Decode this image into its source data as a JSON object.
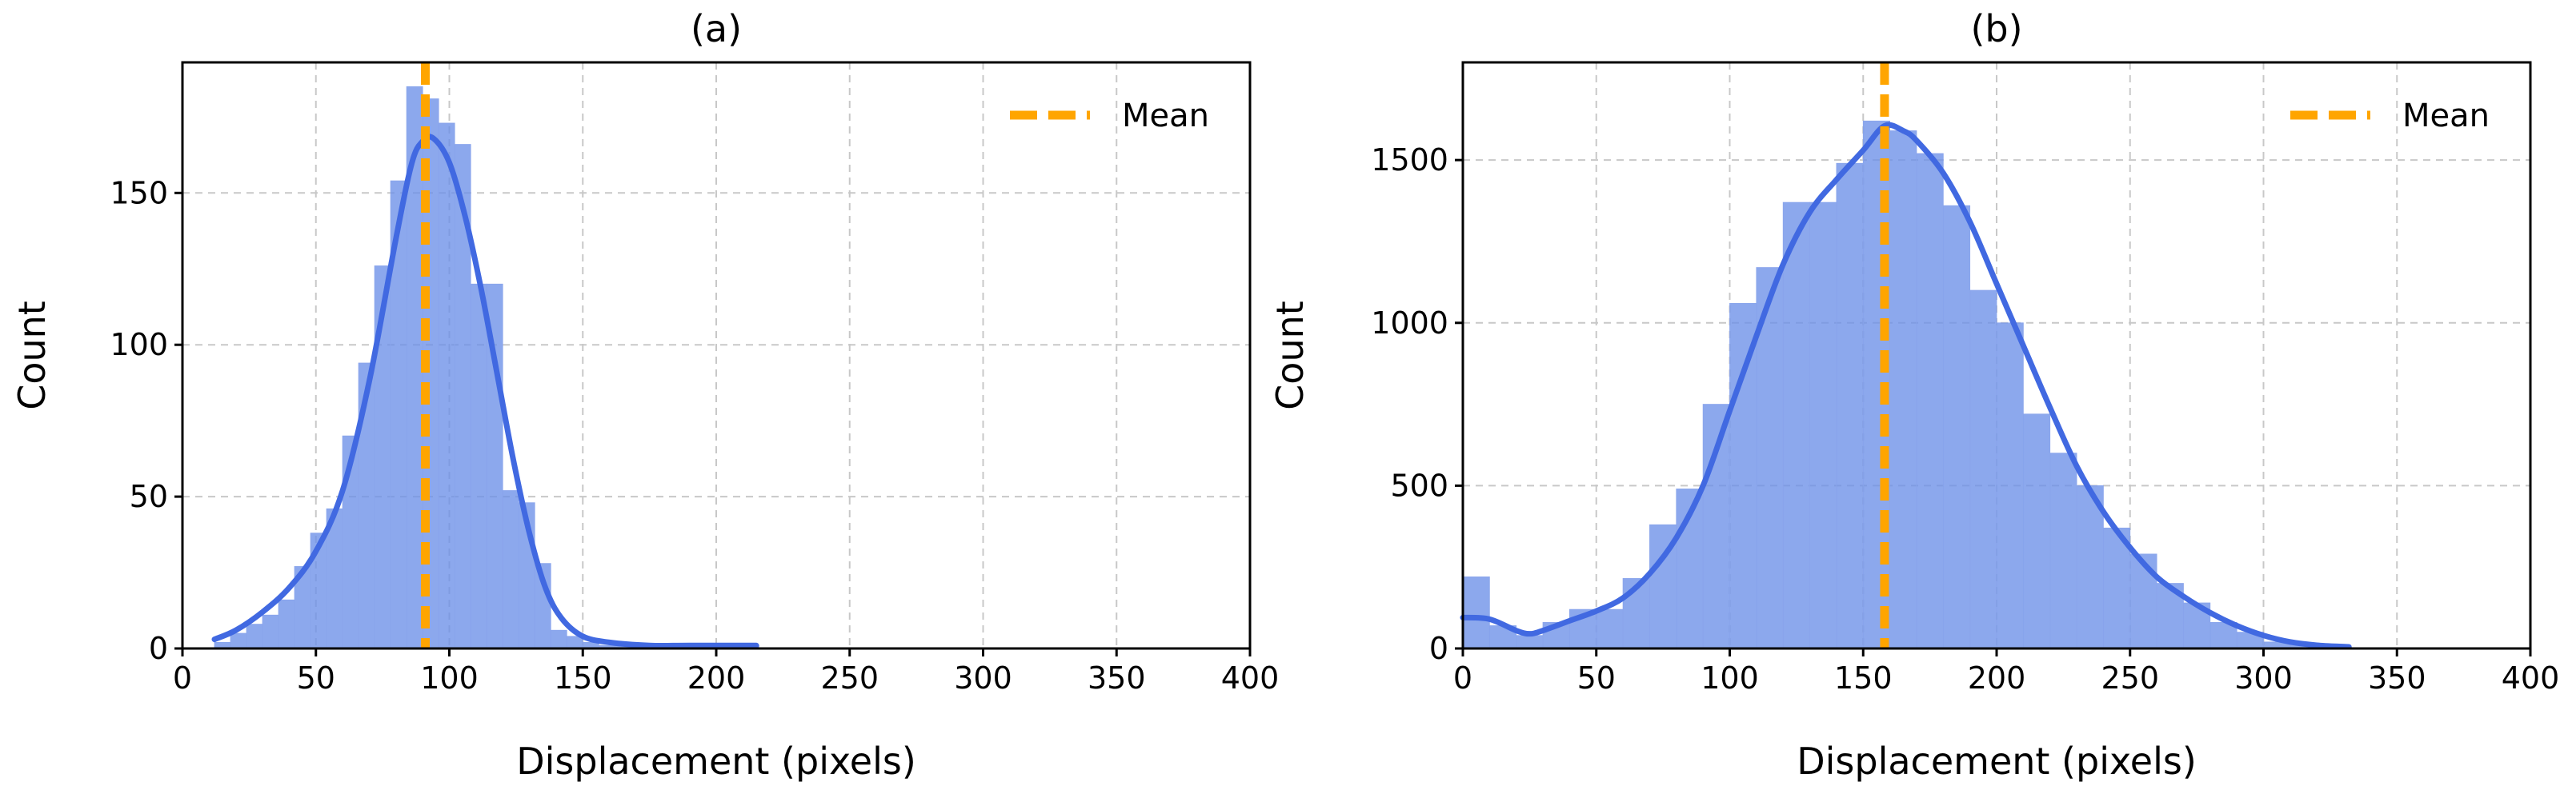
{
  "colors": {
    "bar_fill": "#6b8fe8",
    "bar_opacity": 0.78,
    "kde_line": "#4169e1",
    "mean_line": "#ffa500",
    "grid": "#c8c8c8",
    "axis": "#000000"
  },
  "chart_data": [
    {
      "type": "histogram",
      "title": "(a)",
      "xlabel": "Displacement (pixels)",
      "ylabel": "Count",
      "xlim": [
        0,
        400
      ],
      "ylim": [
        0,
        193
      ],
      "xticks": [
        0,
        50,
        100,
        150,
        200,
        250,
        300,
        350,
        400
      ],
      "yticks": [
        0,
        50,
        100,
        150
      ],
      "grid": true,
      "legend": {
        "label": "Mean",
        "position": "top-right"
      },
      "mean": 91,
      "bins": {
        "edges": [
          12,
          18,
          24,
          30,
          36,
          42,
          48,
          54,
          60,
          66,
          72,
          78,
          84,
          90,
          96,
          102,
          108,
          114,
          120,
          126,
          132,
          138,
          144,
          150,
          156,
          162,
          168,
          174,
          180,
          186,
          192,
          198,
          204,
          210,
          216
        ],
        "counts": [
          2,
          5,
          8,
          11,
          16,
          27,
          38,
          46,
          70,
          94,
          126,
          154,
          185,
          181,
          173,
          166,
          120,
          120,
          52,
          48,
          28,
          6,
          4,
          2,
          1,
          1,
          1,
          1,
          1,
          1,
          1,
          1,
          1,
          1
        ]
      },
      "kde": {
        "x": [
          12,
          20,
          30,
          40,
          50,
          60,
          70,
          80,
          86,
          90,
          94,
          100,
          106,
          112,
          118,
          124,
          130,
          136,
          142,
          150,
          160,
          175,
          190,
          215
        ],
        "y": [
          3,
          6,
          12,
          20,
          32,
          52,
          88,
          135,
          160,
          167,
          168,
          160,
          142,
          118,
          90,
          62,
          38,
          20,
          10,
          4,
          2,
          1,
          1,
          1
        ]
      }
    },
    {
      "type": "histogram",
      "title": "(b)",
      "xlabel": "Displacement (pixels)",
      "ylabel": "Count",
      "xlim": [
        0,
        400
      ],
      "ylim": [
        0,
        1800
      ],
      "xticks": [
        0,
        50,
        100,
        150,
        200,
        250,
        300,
        350,
        400
      ],
      "yticks": [
        0,
        500,
        1000,
        1500
      ],
      "grid": true,
      "legend": {
        "label": "Mean",
        "position": "top-right"
      },
      "mean": 158,
      "bins": {
        "edges": [
          0,
          10,
          20,
          30,
          40,
          50,
          60,
          70,
          80,
          90,
          100,
          110,
          120,
          130,
          140,
          150,
          160,
          170,
          180,
          190,
          200,
          210,
          220,
          230,
          240,
          250,
          260,
          270,
          280,
          290,
          300,
          310,
          320,
          330
        ],
        "counts": [
          220,
          70,
          40,
          80,
          120,
          120,
          215,
          380,
          490,
          750,
          1060,
          1170,
          1370,
          1370,
          1490,
          1620,
          1590,
          1520,
          1360,
          1100,
          1000,
          720,
          600,
          500,
          370,
          290,
          200,
          140,
          80,
          50,
          20,
          10,
          5
        ]
      },
      "kde": {
        "x": [
          0,
          10,
          20,
          25,
          30,
          40,
          50,
          60,
          70,
          80,
          90,
          100,
          110,
          120,
          130,
          140,
          150,
          158,
          165,
          170,
          180,
          190,
          200,
          210,
          220,
          230,
          240,
          250,
          260,
          270,
          280,
          290,
          300,
          310,
          320,
          332
        ],
        "y": [
          95,
          90,
          55,
          45,
          55,
          85,
          115,
          155,
          230,
          340,
          500,
          730,
          960,
          1180,
          1340,
          1440,
          1530,
          1605,
          1590,
          1560,
          1460,
          1310,
          1120,
          930,
          740,
          560,
          420,
          310,
          220,
          160,
          110,
          70,
          40,
          20,
          10,
          5
        ]
      }
    }
  ]
}
